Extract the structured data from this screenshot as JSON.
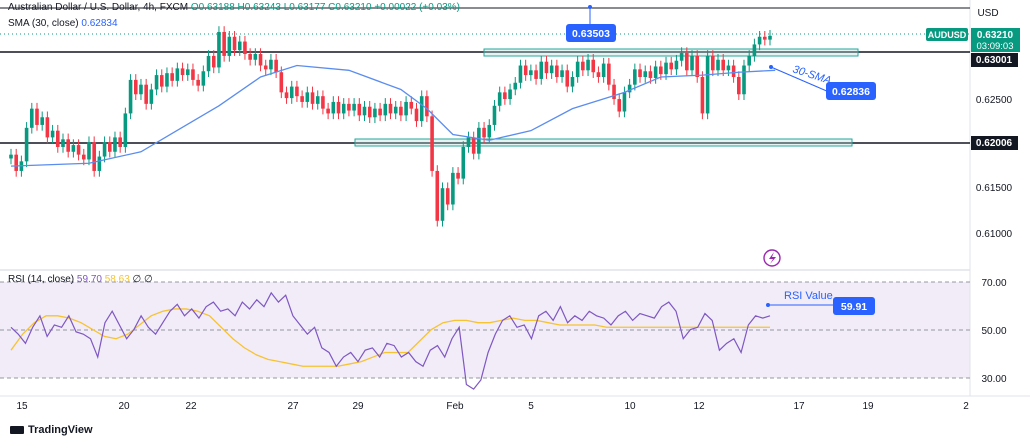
{
  "header": {
    "title": "Australian Dollar / U.S. Dollar, 4h, FXCM",
    "ohlc": "O0.63188 H0.63243 L0.63177 C0.63210 +0.00022 (+0.03%)",
    "sma_label": "SMA (30, close)",
    "sma_value": "0.62834",
    "rsi_label": "RSI (14, close)",
    "rsi_value": "59.70",
    "rsi_ma_value": "58.63",
    "rsi_extra": "∅ ∅"
  },
  "axis": {
    "currency": "USD",
    "price_ticks": [
      "0.62500",
      "0.61500",
      "0.61000"
    ],
    "rsi_ticks": [
      "70.00",
      "50.00",
      "30.00"
    ],
    "time_ticks": [
      "15",
      "20",
      "22",
      "27",
      "29",
      "Feb",
      "5",
      "10",
      "12",
      "17",
      "19",
      "2"
    ]
  },
  "badges": {
    "symbol": "AUDUSD",
    "last_price": "0.63210",
    "countdown": "03:09:03",
    "resistance": "0.63001",
    "support": "0.62006",
    "peak_callout": "0.63503",
    "sma_callout": "0.62836",
    "rsi_callout": "59.91"
  },
  "annotations": {
    "sma_text": "30-SMA",
    "rsi_text": "RSI Value"
  },
  "branding": "TradingView",
  "colors": {
    "up": "#089981",
    "down": "#f23645",
    "sma": "#5b8def",
    "rsi": "#7e57c2",
    "rsi_ma": "#f7c331",
    "callout": "#2962ff"
  },
  "chart_data": {
    "type": "candlestick",
    "price_range": [
      0.6085,
      0.635
    ],
    "rsi_range": [
      25,
      80
    ],
    "levels": [
      0.63,
      0.62006
    ],
    "candles": [
      [
        0.6193,
        0.6197
      ],
      [
        0.6197,
        0.618
      ],
      [
        0.618,
        0.619
      ],
      [
        0.619,
        0.6225
      ],
      [
        0.6225,
        0.6245
      ],
      [
        0.6245,
        0.6228
      ],
      [
        0.6228,
        0.6236
      ],
      [
        0.6236,
        0.6215
      ],
      [
        0.6215,
        0.6222
      ],
      [
        0.6222,
        0.6205
      ],
      [
        0.6205,
        0.6213
      ],
      [
        0.6213,
        0.62
      ],
      [
        0.62,
        0.6207
      ],
      [
        0.6207,
        0.6197
      ],
      [
        0.6197,
        0.6192
      ],
      [
        0.6192,
        0.621
      ],
      [
        0.621,
        0.618
      ],
      [
        0.618,
        0.6195
      ],
      [
        0.6195,
        0.621
      ],
      [
        0.621,
        0.62
      ],
      [
        0.62,
        0.6215
      ],
      [
        0.6215,
        0.6205
      ],
      [
        0.6205,
        0.624
      ],
      [
        0.624,
        0.6275
      ],
      [
        0.6275,
        0.626
      ],
      [
        0.626,
        0.627
      ],
      [
        0.627,
        0.625
      ],
      [
        0.625,
        0.6265
      ],
      [
        0.6265,
        0.628
      ],
      [
        0.628,
        0.6268
      ],
      [
        0.6268,
        0.6282
      ],
      [
        0.6282,
        0.6274
      ],
      [
        0.6274,
        0.6287
      ],
      [
        0.6287,
        0.628
      ],
      [
        0.628,
        0.6286
      ],
      [
        0.6286,
        0.6275
      ],
      [
        0.6275,
        0.6269
      ],
      [
        0.6269,
        0.6284
      ],
      [
        0.6284,
        0.63
      ],
      [
        0.63,
        0.6288
      ],
      [
        0.6288,
        0.6325
      ],
      [
        0.6325,
        0.63
      ],
      [
        0.63,
        0.632
      ],
      [
        0.632,
        0.6306
      ],
      [
        0.6306,
        0.6315
      ],
      [
        0.6315,
        0.6302
      ],
      [
        0.6302,
        0.6296
      ],
      [
        0.6296,
        0.6302
      ],
      [
        0.6302,
        0.629
      ],
      [
        0.629,
        0.6286
      ],
      [
        0.6286,
        0.6296
      ],
      [
        0.6296,
        0.6283
      ],
      [
        0.6283,
        0.6262
      ],
      [
        0.6262,
        0.6256
      ],
      [
        0.6256,
        0.6268
      ],
      [
        0.6268,
        0.6258
      ],
      [
        0.6258,
        0.6252
      ],
      [
        0.6252,
        0.6262
      ],
      [
        0.6262,
        0.625
      ],
      [
        0.625,
        0.6258
      ],
      [
        0.6258,
        0.6245
      ],
      [
        0.6245,
        0.624
      ],
      [
        0.624,
        0.6252
      ],
      [
        0.6252,
        0.624
      ],
      [
        0.624,
        0.625
      ],
      [
        0.625,
        0.6243
      ],
      [
        0.6243,
        0.625
      ],
      [
        0.625,
        0.6238
      ],
      [
        0.6238,
        0.6247
      ],
      [
        0.6247,
        0.6236
      ],
      [
        0.6236,
        0.6245
      ],
      [
        0.6245,
        0.6238
      ],
      [
        0.6238,
        0.625
      ],
      [
        0.625,
        0.624
      ],
      [
        0.624,
        0.6247
      ],
      [
        0.6247,
        0.6238
      ],
      [
        0.6238,
        0.6252
      ],
      [
        0.6252,
        0.6245
      ],
      [
        0.6245,
        0.6232
      ],
      [
        0.6232,
        0.6258
      ],
      [
        0.6258,
        0.6237
      ],
      [
        0.6237,
        0.618
      ],
      [
        0.618,
        0.6128
      ],
      [
        0.6128,
        0.6162
      ],
      [
        0.6162,
        0.6145
      ],
      [
        0.6145,
        0.6178
      ],
      [
        0.6178,
        0.6172
      ],
      [
        0.6172,
        0.6205
      ],
      [
        0.6205,
        0.6215
      ],
      [
        0.6215,
        0.6198
      ],
      [
        0.6198,
        0.6225
      ],
      [
        0.6225,
        0.6215
      ],
      [
        0.6215,
        0.6228
      ],
      [
        0.6228,
        0.6248
      ],
      [
        0.6248,
        0.6262
      ],
      [
        0.6262,
        0.6255
      ],
      [
        0.6255,
        0.6265
      ],
      [
        0.6265,
        0.6272
      ],
      [
        0.6272,
        0.629
      ],
      [
        0.629,
        0.628
      ],
      [
        0.628,
        0.6285
      ],
      [
        0.6285,
        0.6276
      ],
      [
        0.6276,
        0.6294
      ],
      [
        0.6294,
        0.6282
      ],
      [
        0.6282,
        0.629
      ],
      [
        0.629,
        0.6278
      ],
      [
        0.6278,
        0.6285
      ],
      [
        0.6285,
        0.6268
      ],
      [
        0.6268,
        0.6278
      ],
      [
        0.6278,
        0.6294
      ],
      [
        0.6294,
        0.6285
      ],
      [
        0.6285,
        0.6296
      ],
      [
        0.6296,
        0.6283
      ],
      [
        0.6283,
        0.6278
      ],
      [
        0.6278,
        0.6292
      ],
      [
        0.6292,
        0.627
      ],
      [
        0.627,
        0.6255
      ],
      [
        0.6255,
        0.6242
      ],
      [
        0.6242,
        0.6262
      ],
      [
        0.6262,
        0.627
      ],
      [
        0.627,
        0.6286
      ],
      [
        0.6286,
        0.6278
      ],
      [
        0.6278,
        0.6284
      ],
      [
        0.6284,
        0.6277
      ],
      [
        0.6277,
        0.6289
      ],
      [
        0.6289,
        0.6281
      ],
      [
        0.6281,
        0.6293
      ],
      [
        0.6293,
        0.6286
      ],
      [
        0.6286,
        0.6295
      ],
      [
        0.6295,
        0.6303
      ],
      [
        0.6303,
        0.6285
      ],
      [
        0.6285,
        0.63
      ],
      [
        0.63,
        0.6278
      ],
      [
        0.6278,
        0.624
      ],
      [
        0.624,
        0.63
      ],
      [
        0.63,
        0.6285
      ],
      [
        0.6285,
        0.6296
      ],
      [
        0.6296,
        0.6285
      ],
      [
        0.6285,
        0.629
      ],
      [
        0.629,
        0.6278
      ],
      [
        0.6278,
        0.626
      ],
      [
        0.626,
        0.629
      ],
      [
        0.629,
        0.63
      ],
      [
        0.63,
        0.6312
      ],
      [
        0.6312,
        0.632
      ],
      [
        0.632,
        0.6317
      ],
      [
        0.6317,
        0.6321
      ]
    ],
    "sma": [
      [
        0,
        0.6185
      ],
      [
        15,
        0.6188
      ],
      [
        25,
        0.62
      ],
      [
        40,
        0.6248
      ],
      [
        48,
        0.6278
      ],
      [
        55,
        0.629
      ],
      [
        65,
        0.6285
      ],
      [
        75,
        0.6265
      ],
      [
        80,
        0.6245
      ],
      [
        85,
        0.6218
      ],
      [
        92,
        0.6212
      ],
      [
        100,
        0.6222
      ],
      [
        108,
        0.6245
      ],
      [
        118,
        0.6262
      ],
      [
        125,
        0.6278
      ],
      [
        133,
        0.628
      ],
      [
        140,
        0.6283
      ],
      [
        147,
        0.6285
      ]
    ],
    "rsi": [
      55,
      52,
      48,
      55,
      60,
      51,
      56,
      55,
      60,
      53,
      52,
      50,
      42,
      57,
      62,
      56,
      50,
      54,
      60,
      55,
      52,
      57,
      62,
      65,
      60,
      63,
      59,
      64,
      66,
      62,
      63,
      60,
      66,
      63,
      67,
      64,
      70,
      66,
      69,
      60,
      56,
      52,
      55,
      46,
      44,
      38,
      42,
      44,
      40,
      45,
      46,
      42,
      48,
      47,
      42,
      44,
      40,
      38,
      45,
      47,
      42,
      50,
      55,
      30,
      28,
      32,
      44,
      52,
      58,
      60,
      55,
      56,
      50,
      60,
      62,
      58,
      64,
      57,
      60,
      58,
      62,
      60,
      59,
      56,
      60,
      62,
      58,
      61,
      60,
      59,
      64,
      66,
      62,
      50,
      54,
      55,
      61,
      58,
      45,
      48,
      50,
      44,
      56,
      60,
      59,
      60
    ],
    "rsi_ma": [
      45,
      52,
      57,
      60,
      60,
      59,
      57,
      54,
      51,
      50,
      52,
      56,
      60,
      62,
      63,
      63,
      62,
      60,
      55,
      50,
      46,
      43,
      41,
      40,
      39,
      38,
      38,
      38,
      38,
      39,
      40,
      42,
      44,
      44,
      44,
      49,
      54,
      57,
      58,
      58,
      57,
      57,
      58,
      59,
      58,
      58,
      57,
      56,
      56,
      56,
      56,
      55,
      55,
      55,
      55,
      55,
      55,
      55,
      55,
      55,
      55,
      55,
      55,
      55,
      55,
      55
    ]
  }
}
